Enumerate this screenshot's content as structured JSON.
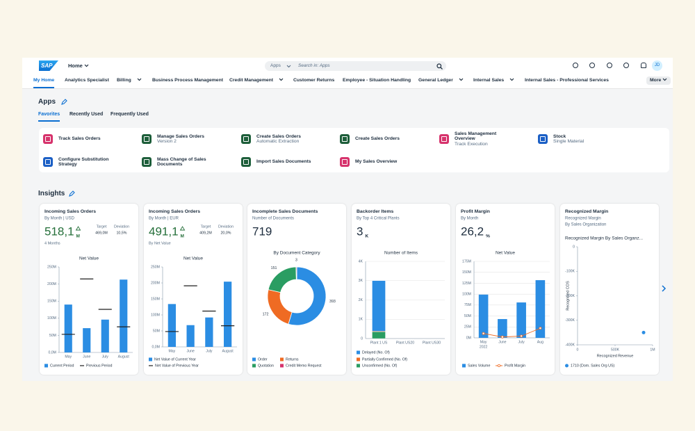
{
  "shell": {
    "logo": "SAP",
    "home": "Home",
    "search_scope": "Apps",
    "search_placeholder": "Search in: Apps",
    "avatar": "JD"
  },
  "nav": {
    "items": [
      {
        "label": "My Home"
      },
      {
        "label": "Analytics Specialist"
      },
      {
        "label": "Billing",
        "has_menu": true
      },
      {
        "label": "Business Process Management"
      },
      {
        "label": "Credit Management",
        "has_menu": true
      },
      {
        "label": "Customer Returns"
      },
      {
        "label": "Employee - Situation Handling"
      },
      {
        "label": "General Ledger",
        "has_menu": true
      },
      {
        "label": "Internal Sales",
        "has_menu": true
      },
      {
        "label": "Internal Sales - Professional Services"
      }
    ],
    "active": 0,
    "more": "More"
  },
  "apps": {
    "title": "Apps",
    "tabs": [
      "Favorites",
      "Recently Used",
      "Frequently Used"
    ],
    "active_tab": 0,
    "tiles": [
      {
        "title": "Track Sales Orders",
        "color": "#d6336c"
      },
      {
        "title": "Manage Sales Orders",
        "subtitle": "Version 2",
        "color": "#1d5e3a"
      },
      {
        "title": "Create Sales Orders",
        "subtitle": "Automatic Extraction",
        "color": "#1d5e3a"
      },
      {
        "title": "Create Sales Orders",
        "color": "#1d5e3a"
      },
      {
        "title": "Sales Management Overview",
        "subtitle": "Track Execution",
        "color": "#d6336c"
      },
      {
        "title": "Stock",
        "subtitle": "Single Material",
        "color": "#1b5fc5"
      },
      {
        "title": "Configure Substitution Strategy",
        "color": "#1b5fc5"
      },
      {
        "title": "Mass Change of Sales Documents",
        "color": "#1d5e3a"
      },
      {
        "title": "Import Sales Documents",
        "color": "#1d5e3a"
      },
      {
        "title": "My Sales Overview",
        "color": "#d6336c"
      }
    ]
  },
  "insights": {
    "title": "Insights",
    "cards": [
      {
        "title": "Incoming Sales Orders",
        "subtitle": "By Month | USD",
        "kpi": "518,1",
        "kpi_unit": "M",
        "kpi_color": "#256f3a",
        "trend": "up",
        "target_label": "Target",
        "target": "469,0M",
        "deviation_label": "Deviation",
        "deviation": "10,5%",
        "note": "4 Months",
        "chart": {
          "type": "bar_target",
          "title": "Net Value",
          "categories": [
            "May",
            "June",
            "July",
            "August"
          ],
          "series": [
            {
              "name": "Current Period",
              "color": "#2b8de3",
              "values": [
                140,
                71,
                96,
                213
              ]
            },
            {
              "name": "Previous Period",
              "color": "#1d1d1d",
              "values": [
                53,
                215,
                126,
                75
              ]
            }
          ],
          "ylim": [
            0,
            250
          ],
          "yticks": [
            {
              "value": 0,
              "label": "0,0M"
            },
            {
              "value": 50,
              "label": "50M"
            },
            {
              "value": 100,
              "label": "100M"
            },
            {
              "value": 150,
              "label": "150M"
            },
            {
              "value": 200,
              "label": "200M"
            },
            {
              "value": 250,
              "label": "250M"
            }
          ],
          "grid": false
        }
      },
      {
        "title": "Incoming Sales Orders",
        "subtitle": "By Month | EUR",
        "kpi": "491,1",
        "kpi_unit": "M",
        "kpi_color": "#256f3a",
        "trend": "up",
        "target_label": "Target",
        "target": "409,2M",
        "deviation_label": "Deviation",
        "deviation": "20,0%",
        "note": "By Net Value",
        "chart": {
          "type": "bar_target",
          "title": "Net Value",
          "categories": [
            "May",
            "June",
            "July",
            "August"
          ],
          "series": [
            {
              "name": "Net Value of Current Year",
              "color": "#2b8de3",
              "values": [
                134,
                68,
                92,
                204
              ]
            },
            {
              "name": "Net Value of Previous Year",
              "color": "#1d1d1d",
              "values": [
                48,
                191,
                112,
                66
              ]
            }
          ],
          "ylim": [
            0,
            250
          ],
          "yticks": [
            {
              "value": 0,
              "label": "0,0M"
            },
            {
              "value": 50,
              "label": "50M"
            },
            {
              "value": 100,
              "label": "100M"
            },
            {
              "value": 150,
              "label": "150M"
            },
            {
              "value": 200,
              "label": "200M"
            },
            {
              "value": 250,
              "label": "250M"
            }
          ],
          "grid": false
        }
      },
      {
        "title": "Incomplete Sales Documents",
        "subtitle": "Number of Documents",
        "kpi": "719",
        "kpi_color": "#1d2d3e",
        "chart": {
          "type": "donut",
          "title": "By Document Category",
          "categories": [
            "Order",
            "Returns",
            "Quotation",
            "Credit Memo Request"
          ],
          "values": [
            393,
            172,
            151,
            3
          ],
          "colors": [
            "#2b8de3",
            "#ef6b23",
            "#2a9d62",
            "#d6336c"
          ]
        }
      },
      {
        "title": "Backorder Items",
        "subtitle": "By Top 4 Critical Plants",
        "kpi": "3",
        "kpi_unit": "K",
        "kpi_color": "#1d2d3e",
        "chart": {
          "type": "stacked_bar",
          "title": "Number of Items",
          "categories": [
            "Plant 1 US",
            "Plant US20",
            "Plant US30"
          ],
          "series": [
            {
              "name": "Delayed (No. Of)",
              "color": "#2b8de3",
              "values": [
                2620,
                0,
                0
              ]
            },
            {
              "name": "Partially Confirmed (No. Of)",
              "color": "#ef6b23",
              "values": [
                30,
                0,
                0
              ]
            },
            {
              "name": "Unconfirmed (No. Of)",
              "color": "#2a9d62",
              "values": [
                350,
                0,
                0
              ]
            }
          ],
          "ylim": [
            0,
            4000
          ],
          "yticks": [
            0,
            {
              "value": 1000,
              "label": "1K"
            },
            {
              "value": 2000,
              "label": "2K"
            },
            {
              "value": 3000,
              "label": "3K"
            },
            {
              "value": 4000,
              "label": "4K"
            }
          ],
          "grid": true
        }
      },
      {
        "title": "Profit Margin",
        "subtitle": "By Month",
        "kpi": "26,2",
        "kpi_unit": "%",
        "kpi_color": "#1d2d3e",
        "chart": {
          "type": "bar_line",
          "title": "Net Value",
          "categories": [
            "May",
            "June",
            "July",
            "Aug"
          ],
          "category_note": "2022",
          "series": [
            {
              "name": "Sales Volume",
              "color": "#2b8de3",
              "values": [
                99,
                43,
                81,
                132
              ]
            },
            {
              "name": "Profit Margin",
              "color": "#ef6b23",
              "values": [
                10,
                2,
                4,
                22
              ]
            }
          ],
          "ylim": [
            0,
            175
          ],
          "yticks": [
            {
              "value": 0,
              "label": "0M"
            },
            {
              "value": 25,
              "label": "25M"
            },
            {
              "value": 50,
              "label": "50M"
            },
            {
              "value": 75,
              "label": "75M"
            },
            {
              "value": 100,
              "label": "100M"
            },
            {
              "value": 125,
              "label": "125M"
            },
            {
              "value": 150,
              "label": "150M"
            },
            {
              "value": 175,
              "label": "175M"
            }
          ],
          "grid": true
        }
      },
      {
        "title": "Recognized Margin",
        "subtitle": "Recognized Margin",
        "subtitle2": "By Sales Organization",
        "chart": {
          "type": "scatter",
          "title": "Recognized Margin By Sales Organz...",
          "xlabel": "Recognized Revenue",
          "ylabel": "Recognized COS",
          "series": [
            {
              "name": "1710 (Dom. Sales Org US)",
              "color": "#2b8de3",
              "x": [
                880000
              ],
              "values": [
                -350000
              ]
            }
          ],
          "xlim": [
            0,
            1000000
          ],
          "xticks": [
            0,
            {
              "value": 500000,
              "label": "500K"
            },
            {
              "value": 1000000,
              "label": "1M"
            }
          ],
          "ylim": [
            -400000,
            0
          ],
          "yticks": [
            {
              "value": -400000,
              "label": "-400K"
            },
            {
              "value": -300000,
              "label": "-300K"
            },
            {
              "value": -200000,
              "label": "-200K"
            },
            {
              "value": -100000,
              "label": "-100K"
            },
            0
          ],
          "grid": false
        }
      }
    ]
  }
}
